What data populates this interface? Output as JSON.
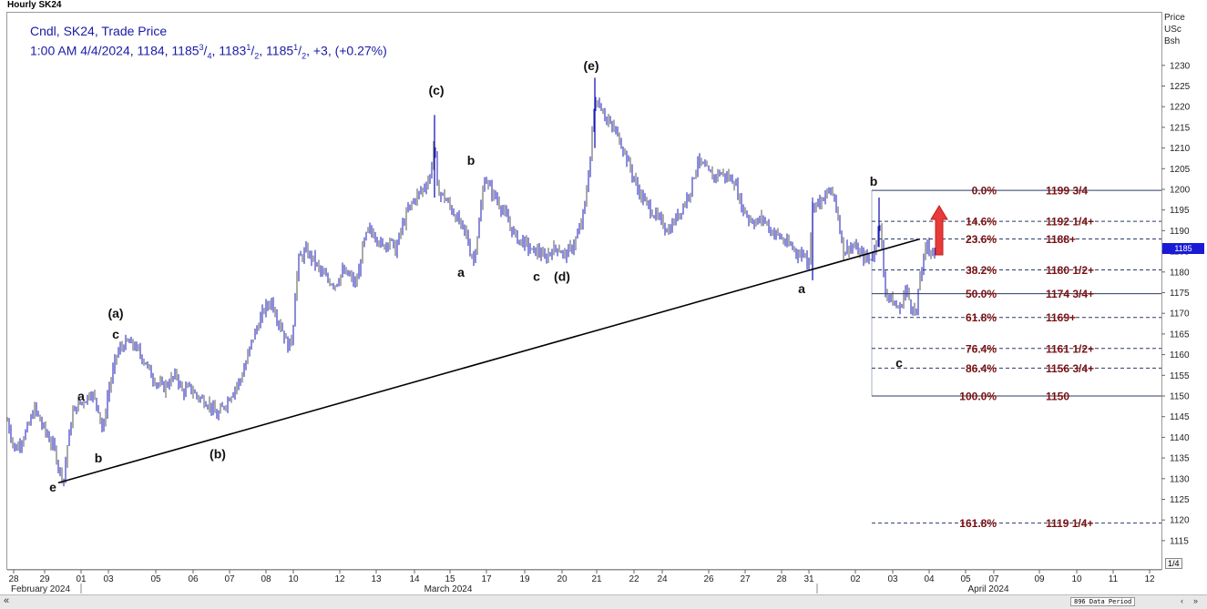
{
  "title": "Hourly SK24",
  "legend": {
    "line1": "Cndl, SK24, Trade Price",
    "l2_a": "1:00 AM 4/4/2024, 1184, 1185",
    "l2_b": "3",
    "l2_c": "/",
    "l2_d": "4",
    "l2_e": ", 1183",
    "l2_f": "1",
    "l2_g": "/",
    "l2_h": "2",
    "l2_i": ", 1185",
    "l2_j": "1",
    "l2_k": "/",
    "l2_l": "2",
    "l2_m": ", +3, (+0.27%)"
  },
  "price_axis": {
    "title_lines": [
      "Price",
      "USc",
      "Bsh"
    ]
  },
  "last_price_tag": "1185",
  "page_indicator": "1/4",
  "data_period": "896 Data Period",
  "scroll": {
    "left": "«",
    "right1": "‹",
    "right2": "»"
  },
  "chart_data": {
    "type": "candlestick",
    "title": "Hourly SK24",
    "y_axis": {
      "ylim": [
        1110,
        1235
      ],
      "ticks": [
        1115,
        1120,
        1125,
        1130,
        1135,
        1140,
        1145,
        1150,
        1155,
        1160,
        1165,
        1170,
        1175,
        1180,
        1185,
        1190,
        1195,
        1200,
        1205,
        1210,
        1215,
        1220,
        1225,
        1230
      ]
    },
    "x_axis": {
      "tick_labels": [
        "28",
        "29",
        "01",
        "03",
        "05",
        "06",
        "07",
        "08",
        "10",
        "12",
        "13",
        "14",
        "15",
        "17",
        "19",
        "20",
        "21",
        "22",
        "24",
        "26",
        "27",
        "28",
        "31",
        "02",
        "03",
        "04",
        "05",
        "07",
        "09",
        "10",
        "11",
        "12"
      ],
      "month_labels": [
        "February 2024",
        "March 2024",
        "April 2024"
      ]
    },
    "series": [
      {
        "name": "SK24",
        "price_path": [
          [
            0,
            1144
          ],
          [
            8,
            1137
          ],
          [
            15,
            1139
          ],
          [
            22,
            1142
          ],
          [
            30,
            1147
          ],
          [
            38,
            1143
          ],
          [
            45,
            1140
          ],
          [
            52,
            1137
          ],
          [
            57,
            1132
          ],
          [
            62,
            1130
          ],
          [
            66,
            1138
          ],
          [
            72,
            1146
          ],
          [
            78,
            1148
          ],
          [
            85,
            1149
          ],
          [
            92,
            1151
          ],
          [
            100,
            1147
          ],
          [
            105,
            1141
          ],
          [
            110,
            1150
          ],
          [
            115,
            1155
          ],
          [
            120,
            1160
          ],
          [
            126,
            1162
          ],
          [
            132,
            1163
          ],
          [
            140,
            1162
          ],
          [
            146,
            1160
          ],
          [
            152,
            1158
          ],
          [
            158,
            1155
          ],
          [
            165,
            1153
          ],
          [
            172,
            1152
          ],
          [
            180,
            1154
          ],
          [
            186,
            1155
          ],
          [
            192,
            1151
          ],
          [
            200,
            1152
          ],
          [
            208,
            1150
          ],
          [
            215,
            1149
          ],
          [
            222,
            1148
          ],
          [
            230,
            1145
          ],
          [
            236,
            1147
          ],
          [
            242,
            1149
          ],
          [
            250,
            1152
          ],
          [
            256,
            1154
          ],
          [
            262,
            1158
          ],
          [
            268,
            1163
          ],
          [
            275,
            1167
          ],
          [
            282,
            1171
          ],
          [
            290,
            1173
          ],
          [
            296,
            1169
          ],
          [
            302,
            1166
          ],
          [
            308,
            1162
          ],
          [
            313,
            1164
          ],
          [
            316,
            1175
          ],
          [
            320,
            1183
          ],
          [
            328,
            1185
          ],
          [
            336,
            1183
          ],
          [
            344,
            1180
          ],
          [
            352,
            1178
          ],
          [
            360,
            1177
          ],
          [
            368,
            1180
          ],
          [
            376,
            1179
          ],
          [
            382,
            1177
          ],
          [
            386,
            1180
          ],
          [
            390,
            1186
          ],
          [
            396,
            1190
          ],
          [
            404,
            1189
          ],
          [
            412,
            1186
          ],
          [
            420,
            1188
          ],
          [
            426,
            1185
          ],
          [
            432,
            1190
          ],
          [
            440,
            1195
          ],
          [
            448,
            1198
          ],
          [
            456,
            1200
          ],
          [
            464,
            1203
          ],
          [
            469,
            1212
          ],
          [
            472,
            1200
          ],
          [
            480,
            1198
          ],
          [
            488,
            1195
          ],
          [
            496,
            1192
          ],
          [
            504,
            1189
          ],
          [
            508,
            1185
          ],
          [
            512,
            1183
          ],
          [
            518,
            1192
          ],
          [
            524,
            1203
          ],
          [
            530,
            1200
          ],
          [
            536,
            1198
          ],
          [
            544,
            1195
          ],
          [
            552,
            1191
          ],
          [
            560,
            1188
          ],
          [
            568,
            1187
          ],
          [
            576,
            1185
          ],
          [
            584,
            1185
          ],
          [
            590,
            1183
          ],
          [
            596,
            1185
          ],
          [
            604,
            1186
          ],
          [
            612,
            1184
          ],
          [
            620,
            1186
          ],
          [
            628,
            1190
          ],
          [
            634,
            1196
          ],
          [
            640,
            1208
          ],
          [
            645,
            1222
          ],
          [
            652,
            1220
          ],
          [
            660,
            1216
          ],
          [
            668,
            1214
          ],
          [
            676,
            1210
          ],
          [
            684,
            1205
          ],
          [
            692,
            1200
          ],
          [
            700,
            1197
          ],
          [
            710,
            1194
          ],
          [
            718,
            1192
          ],
          [
            726,
            1190
          ],
          [
            734,
            1193
          ],
          [
            742,
            1196
          ],
          [
            750,
            1200
          ],
          [
            758,
            1207
          ],
          [
            766,
            1205
          ],
          [
            774,
            1203
          ],
          [
            782,
            1204
          ],
          [
            790,
            1203
          ],
          [
            798,
            1202
          ],
          [
            806,
            1196
          ],
          [
            814,
            1193
          ],
          [
            822,
            1192
          ],
          [
            830,
            1193
          ],
          [
            838,
            1190
          ],
          [
            846,
            1189
          ],
          [
            854,
            1187
          ],
          [
            862,
            1186
          ],
          [
            870,
            1184
          ],
          [
            875,
            1185
          ],
          [
            879,
            1181
          ],
          [
            884,
            1196
          ],
          [
            890,
            1197
          ],
          [
            896,
            1197
          ],
          [
            902,
            1200
          ],
          [
            908,
            1198
          ],
          [
            913,
            1192
          ],
          [
            918,
            1185
          ],
          [
            924,
            1186
          ],
          [
            930,
            1186
          ],
          [
            938,
            1184
          ],
          [
            946,
            1183
          ],
          [
            952,
            1185
          ],
          [
            957,
            1193
          ],
          [
            960,
            1186
          ],
          [
            963,
            1176
          ],
          [
            968,
            1174
          ],
          [
            974,
            1172
          ],
          [
            980,
            1171
          ],
          [
            986,
            1176
          ],
          [
            992,
            1172
          ],
          [
            998,
            1170
          ],
          [
            1002,
            1179
          ],
          [
            1006,
            1183
          ],
          [
            1010,
            1187
          ],
          [
            1014,
            1185
          ],
          [
            1020,
            1185
          ]
        ]
      }
    ],
    "wave_labels": [
      {
        "text": "e",
        "x": 0,
        "price": 1128
      },
      {
        "text": "a",
        "x": 0,
        "price": 1150
      },
      {
        "text": "b",
        "x": 0,
        "price": 1135
      },
      {
        "text": "c",
        "x": 0,
        "price": 1165
      },
      {
        "text": "(a)",
        "x": 0,
        "price": 1170
      },
      {
        "text": "(b)",
        "x": 0,
        "price": 1136
      },
      {
        "text": "(c)",
        "x": 0,
        "price": 1224
      },
      {
        "text": "b",
        "x": 0,
        "price": 1207
      },
      {
        "text": "a",
        "x": 0,
        "price": 1180
      },
      {
        "text": "c",
        "x": 0,
        "price": 1179
      },
      {
        "text": "(d)",
        "x": 0,
        "price": 1179
      },
      {
        "text": "(e)",
        "x": 0,
        "price": 1230
      },
      {
        "text": "a",
        "x": 0,
        "price": 1176
      },
      {
        "text": "b",
        "x": 0,
        "price": 1202
      },
      {
        "text": "c",
        "x": 0,
        "price": 1158
      }
    ],
    "trendline": {
      "from_price": 1129,
      "to_price": 1188
    },
    "fib_levels": [
      {
        "pct": "0.0%",
        "price": 1199.75,
        "label": "1199 3/4",
        "style": "solid"
      },
      {
        "pct": "14.6%",
        "price": 1192.25,
        "label": "1192 1/4+",
        "style": "dashed"
      },
      {
        "pct": "23.6%",
        "price": 1188,
        "label": "1188+",
        "style": "dashed"
      },
      {
        "pct": "38.2%",
        "price": 1180.5,
        "label": "1180 1/2+",
        "style": "dashed"
      },
      {
        "pct": "50.0%",
        "price": 1174.75,
        "label": "1174 3/4+",
        "style": "solid"
      },
      {
        "pct": "61.8%",
        "price": 1169,
        "label": "1169+",
        "style": "dashed"
      },
      {
        "pct": "76.4%",
        "price": 1161.5,
        "label": "1161 1/2+",
        "style": "dashed"
      },
      {
        "pct": "86.4%",
        "price": 1156.75,
        "label": "1156 3/4+",
        "style": "dashed"
      },
      {
        "pct": "100.0%",
        "price": 1150,
        "label": "1150",
        "style": "solid"
      },
      {
        "pct": "161.8%",
        "price": 1119.25,
        "label": "1119 1/4+",
        "style": "dashed"
      }
    ],
    "arrow": {
      "direction": "up",
      "color": "#e83a3a"
    },
    "colors": {
      "candle": "#1a1ab8",
      "candle_alt": "#555555",
      "fib": "#7a1010",
      "fib_line": "#2a3a66",
      "legend": "#1a1aa8"
    }
  }
}
